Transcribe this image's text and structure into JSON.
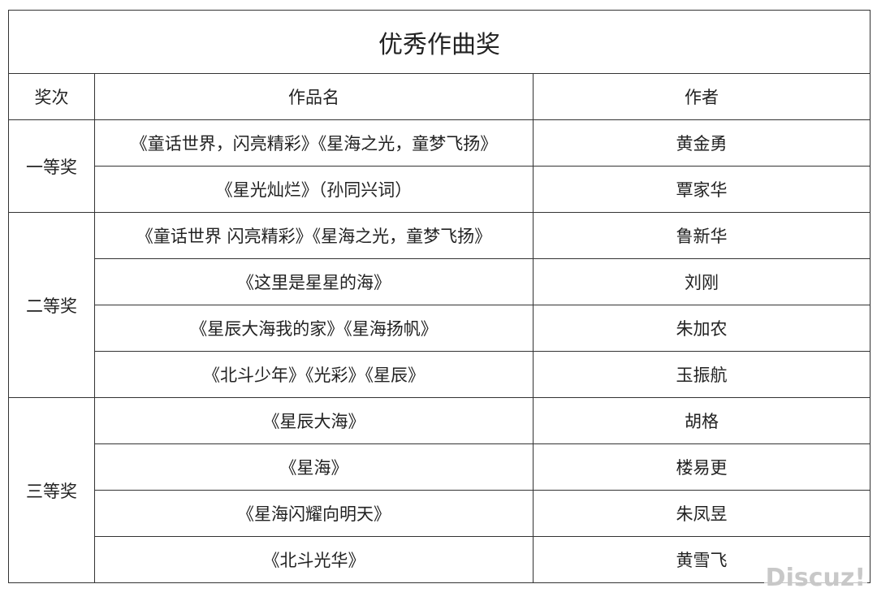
{
  "title": "优秀作曲奖",
  "headers": [
    "奖次",
    "作品名",
    "作者"
  ],
  "groups": [
    {
      "award": "一等奖",
      "rows": [
        {
          "work": "《童话世界，闪亮精彩》《星海之光，童梦飞扬》",
          "author": "黄金勇"
        },
        {
          "work": "《星光灿烂》（孙同兴词）",
          "author": "覃家华"
        }
      ]
    },
    {
      "award": "二等奖",
      "rows": [
        {
          "work": "《童话世界 闪亮精彩》《星海之光，童梦飞扬》",
          "author": "鲁新华"
        },
        {
          "work": "《这里是星星的海》",
          "author": "刘刚"
        },
        {
          "work": "《星辰大海我的家》《星海扬帆》",
          "author": "朱加农"
        },
        {
          "work": "《北斗少年》《光彩》《星辰》",
          "author": "玉振航"
        }
      ]
    },
    {
      "award": "三等奖",
      "rows": [
        {
          "work": "《星辰大海》",
          "author": "胡格"
        },
        {
          "work": "《星海》",
          "author": "楼易更"
        },
        {
          "work": "《星海闪耀向明天》",
          "author": "朱凤昱"
        },
        {
          "work": "《北斗光华》",
          "author": "黄雪飞"
        }
      ]
    }
  ],
  "watermark": "Discuz!"
}
